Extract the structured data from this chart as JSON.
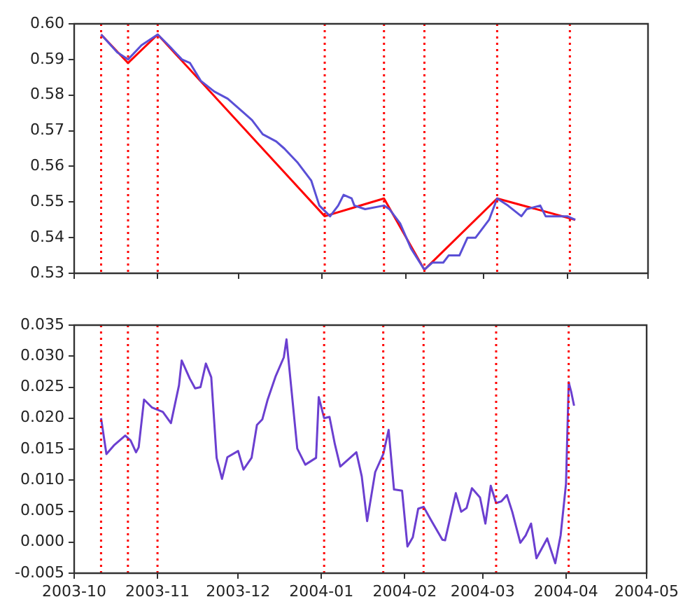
{
  "chart_data": [
    {
      "type": "line",
      "tick_labels": "y",
      "line_style": "solid",
      "xlim": [
        "2003-10",
        "2004-05"
      ],
      "xticks": [
        "2003-10",
        "2003-11",
        "2003-12",
        "2004-01",
        "2004-02",
        "2004-03",
        "2004-04",
        "2004-05"
      ],
      "ylim": [
        0.53,
        0.6
      ],
      "yticks": [
        {
          "value": 0.53,
          "label": "0.53"
        },
        {
          "value": 0.54,
          "label": "0.54"
        },
        {
          "value": 0.55,
          "label": "0.55"
        },
        {
          "value": 0.56,
          "label": "0.56"
        },
        {
          "value": 0.57,
          "label": "0.57"
        },
        {
          "value": 0.58,
          "label": "0.58"
        },
        {
          "value": 0.59,
          "label": "0.59"
        },
        {
          "value": 0.6,
          "label": "0.60"
        }
      ],
      "series": [
        {
          "color": "#5a4fd6",
          "x": [
            "2003-10-11",
            "2003-10-17",
            "2003-10-21",
            "2003-10-26",
            "2003-11-01",
            "2003-11-05",
            "2003-11-10",
            "2003-11-13",
            "2003-11-17",
            "2003-11-22",
            "2003-11-27",
            "2003-12-03",
            "2003-12-06",
            "2003-12-10",
            "2003-12-15",
            "2003-12-18",
            "2003-12-23",
            "2003-12-28",
            "2003-12-31",
            "2004-01-04",
            "2004-01-07",
            "2004-01-09",
            "2004-01-12",
            "2004-01-13",
            "2004-01-17",
            "2004-01-24",
            "2004-01-26",
            "2004-01-30",
            "2004-02-03",
            "2004-02-08",
            "2004-02-11",
            "2004-02-15",
            "2004-02-17",
            "2004-02-21",
            "2004-02-24",
            "2004-02-27",
            "2004-03-03",
            "2004-03-06",
            "2004-03-10",
            "2004-03-15",
            "2004-03-17",
            "2004-03-22",
            "2004-03-24",
            "2004-03-29",
            "2004-04-01",
            "2004-04-04"
          ],
          "values": [
            0.597,
            0.592,
            0.59,
            0.594,
            0.597,
            0.594,
            0.59,
            0.589,
            0.584,
            0.581,
            0.579,
            0.575,
            0.573,
            0.569,
            0.567,
            0.565,
            0.561,
            0.556,
            0.549,
            0.546,
            0.549,
            0.552,
            0.551,
            0.549,
            0.548,
            0.549,
            0.548,
            0.544,
            0.537,
            0.531,
            0.533,
            0.533,
            0.535,
            0.535,
            0.54,
            0.54,
            0.545,
            0.551,
            0.549,
            0.546,
            0.548,
            0.549,
            0.546,
            0.546,
            0.546,
            0.545
          ]
        },
        {
          "color": "#ff0000",
          "x": [
            "2003-10-11",
            "2003-10-21",
            "2003-11-01",
            "2004-01-02",
            "2004-01-24",
            "2004-02-08",
            "2004-03-06",
            "2004-04-04"
          ],
          "values": [
            0.597,
            0.589,
            0.597,
            0.546,
            0.551,
            0.531,
            0.551,
            0.545
          ]
        }
      ],
      "ref_lines": [
        {
          "axis": "x",
          "value": "2003-10-11",
          "color": "#ff0000",
          "line_style": "dotted"
        },
        {
          "axis": "x",
          "value": "2003-10-21",
          "color": "#ff0000",
          "line_style": "dotted"
        },
        {
          "axis": "x",
          "value": "2003-11-01",
          "color": "#ff0000",
          "line_style": "dotted"
        },
        {
          "axis": "x",
          "value": "2004-01-02",
          "color": "#ff0000",
          "line_style": "dotted"
        },
        {
          "axis": "x",
          "value": "2004-01-24",
          "color": "#ff0000",
          "line_style": "dotted"
        },
        {
          "axis": "x",
          "value": "2004-02-08",
          "color": "#ff0000",
          "line_style": "dotted"
        },
        {
          "axis": "x",
          "value": "2004-03-06",
          "color": "#ff0000",
          "line_style": "dotted"
        },
        {
          "axis": "x",
          "value": "2004-04-02",
          "color": "#ff0000",
          "line_style": "dotted"
        }
      ]
    },
    {
      "type": "line",
      "line_style": "solid",
      "xlim": [
        "2003-10",
        "2004-05"
      ],
      "xticks": [
        "2003-10",
        "2003-11",
        "2003-12",
        "2004-01",
        "2004-02",
        "2004-03",
        "2004-04",
        "2004-05"
      ],
      "ylim": [
        -0.005,
        0.035
      ],
      "yticks": [
        {
          "value": -0.005,
          "label": "-0.005"
        },
        {
          "value": 0,
          "label": "0.000"
        },
        {
          "value": 0.005,
          "label": "0.005"
        },
        {
          "value": 0.01,
          "label": "0.010"
        },
        {
          "value": 0.015,
          "label": "0.015"
        },
        {
          "value": 0.02,
          "label": "0.020"
        },
        {
          "value": 0.025,
          "label": "0.025"
        },
        {
          "value": 0.03,
          "label": "0.030"
        },
        {
          "value": 0.035,
          "label": "0.035"
        }
      ],
      "series": [
        {
          "color": "#6b3fd0",
          "x": [
            "2003-10-11",
            "2003-10-13",
            "2003-10-16",
            "2003-10-20",
            "2003-10-22",
            "2003-10-24",
            "2003-10-25",
            "2003-10-27",
            "2003-10-30",
            "2003-11-03",
            "2003-11-06",
            "2003-11-09",
            "2003-11-10",
            "2003-11-13",
            "2003-11-15",
            "2003-11-17",
            "2003-11-19",
            "2003-11-21",
            "2003-11-23",
            "2003-11-25",
            "2003-11-27",
            "2003-12-01",
            "2003-12-03",
            "2003-12-06",
            "2003-12-08",
            "2003-12-10",
            "2003-12-12",
            "2003-12-15",
            "2003-12-18",
            "2003-12-19",
            "2003-12-23",
            "2003-12-26",
            "2003-12-30",
            "2003-12-31",
            "2004-01-02",
            "2004-01-04",
            "2004-01-06",
            "2004-01-08",
            "2004-01-14",
            "2004-01-16",
            "2004-01-18",
            "2004-01-21",
            "2004-01-24",
            "2004-01-26",
            "2004-01-28",
            "2004-01-31",
            "2004-02-02",
            "2004-02-04",
            "2004-02-06",
            "2004-02-08",
            "2004-02-11",
            "2004-02-15",
            "2004-02-16",
            "2004-02-20",
            "2004-02-22",
            "2004-02-24",
            "2004-02-26",
            "2004-02-29",
            "2004-03-02",
            "2004-03-04",
            "2004-03-06",
            "2004-03-08",
            "2004-03-10",
            "2004-03-12",
            "2004-03-15",
            "2004-03-17",
            "2004-03-19",
            "2004-03-21",
            "2004-03-25",
            "2004-03-28",
            "2004-03-30",
            "2004-04-01",
            "2004-04-02",
            "2004-04-03",
            "2004-04-04"
          ],
          "values": [
            0.02,
            0.0142,
            0.0157,
            0.0172,
            0.0164,
            0.0145,
            0.0153,
            0.023,
            0.0217,
            0.021,
            0.0192,
            0.0253,
            0.0293,
            0.0264,
            0.0248,
            0.025,
            0.0288,
            0.0266,
            0.0136,
            0.0102,
            0.0137,
            0.0147,
            0.0117,
            0.0136,
            0.0189,
            0.0198,
            0.023,
            0.0268,
            0.0298,
            0.0327,
            0.0151,
            0.0125,
            0.0136,
            0.0234,
            0.02,
            0.0202,
            0.0158,
            0.0122,
            0.0145,
            0.0106,
            0.0034,
            0.0113,
            0.0142,
            0.0181,
            0.0085,
            0.0083,
            -0.0007,
            0.0008,
            0.0054,
            0.0057,
            0.0034,
            0.0004,
            0.0003,
            0.0079,
            0.0049,
            0.0055,
            0.0087,
            0.0072,
            0.003,
            0.0091,
            0.0063,
            0.0066,
            0.0076,
            0.0049,
            -0.0001,
            0.0011,
            0.003,
            -0.0026,
            0.0006,
            -0.0034,
            0.0011,
            0.0094,
            0.0258,
            0.0241,
            0.022
          ]
        }
      ],
      "ref_lines": [
        {
          "axis": "x",
          "value": "2003-10-11",
          "color": "#ff0000",
          "line_style": "dotted"
        },
        {
          "axis": "x",
          "value": "2003-10-21",
          "color": "#ff0000",
          "line_style": "dotted"
        },
        {
          "axis": "x",
          "value": "2003-11-01",
          "color": "#ff0000",
          "line_style": "dotted"
        },
        {
          "axis": "x",
          "value": "2004-01-02",
          "color": "#ff0000",
          "line_style": "dotted"
        },
        {
          "axis": "x",
          "value": "2004-01-24",
          "color": "#ff0000",
          "line_style": "dotted"
        },
        {
          "axis": "x",
          "value": "2004-02-08",
          "color": "#ff0000",
          "line_style": "dotted"
        },
        {
          "axis": "x",
          "value": "2004-03-06",
          "color": "#ff0000",
          "line_style": "dotted"
        },
        {
          "axis": "x",
          "value": "2004-04-02",
          "color": "#ff0000",
          "line_style": "dotted"
        }
      ]
    }
  ]
}
